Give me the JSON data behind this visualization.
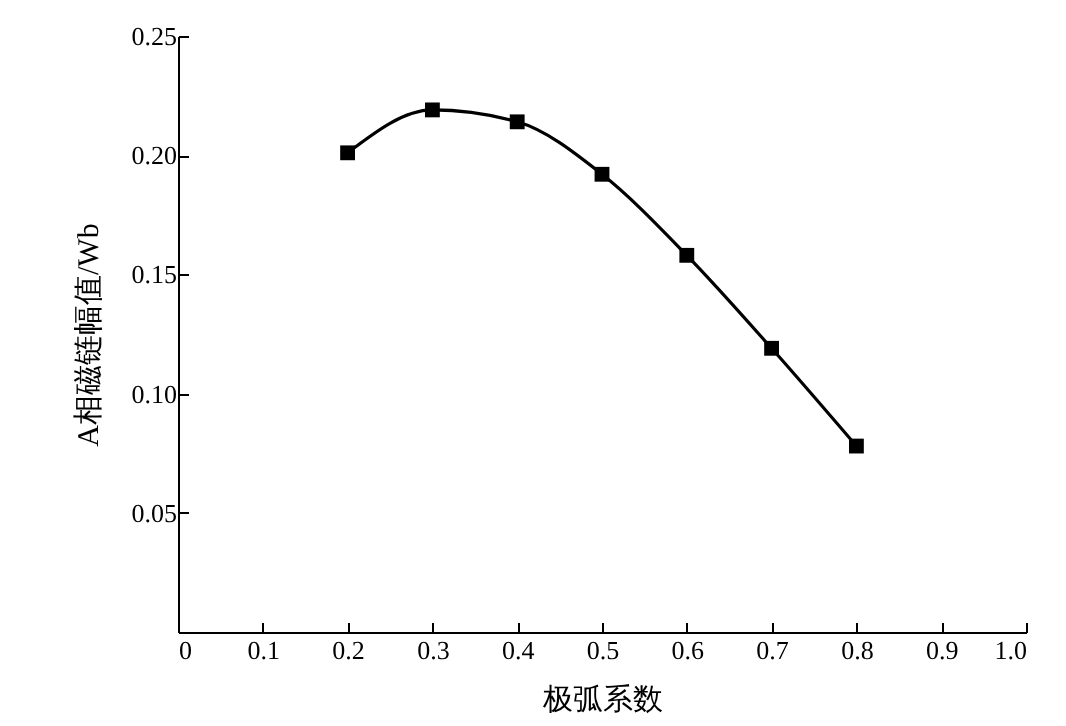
{
  "chart_data": {
    "type": "line",
    "xlabel": "极弧系数",
    "ylabel": "A相磁链幅值/Wb",
    "x": [
      0.2,
      0.3,
      0.4,
      0.5,
      0.6,
      0.7,
      0.8
    ],
    "series": [
      {
        "color": "#000000",
        "values": [
          0.201,
          0.219,
          0.214,
          0.192,
          0.158,
          0.119,
          0.078
        ]
      }
    ],
    "xlim": [
      0,
      1.0
    ],
    "xticks": [
      0,
      0.1,
      0.2,
      0.3,
      0.4,
      0.5,
      0.6,
      0.7,
      0.8,
      0.9,
      {
        "value": 1.0,
        "label": "1.0"
      }
    ],
    "ylim": [
      0,
      0.25
    ],
    "yticks": [
      {
        "value": 0.05,
        "label": "0.05"
      },
      {
        "value": 0.1,
        "label": "0.10"
      },
      {
        "value": 0.15,
        "label": "0.15"
      },
      {
        "value": 0.2,
        "label": "0.20"
      },
      {
        "value": 0.25,
        "label": "0.25"
      }
    ],
    "marker": "square",
    "line_style": "solid",
    "grid": false
  }
}
